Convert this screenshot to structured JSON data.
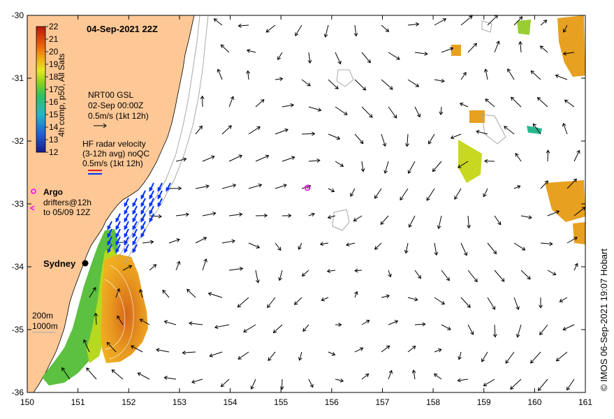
{
  "map": {
    "title": "04-Sep-2021 22Z",
    "credit": "© IMOS 06-Sep-2021 19:07 Hobart",
    "x_ticks": [
      "150",
      "151",
      "152",
      "153",
      "154",
      "155",
      "156",
      "157",
      "158",
      "159",
      "160",
      "161"
    ],
    "y_ticks": [
      "-30",
      "-31",
      "-32",
      "-33",
      "-34",
      "-35",
      "-36"
    ],
    "lon_range": [
      150,
      161
    ],
    "lat_range": [
      -36,
      -30
    ],
    "colorbar": {
      "label": "4h comp, p50, All Sats",
      "ticks": [
        "22",
        "21",
        "20",
        "19",
        "18",
        "17",
        "16",
        "15",
        "14",
        "13",
        "12"
      ],
      "min": 12,
      "max": 22
    },
    "legend": {
      "gsl_title": "NRT00 GSL",
      "gsl_date": "02-Sep 00:00Z",
      "gsl_scale": "0.5m/s (1kt 12h)",
      "radar_title": "HF radar velocity",
      "radar_sub": "(3-12h avg) noQC",
      "radar_scale": "0.5m/s (1kt 12h)",
      "argo_label": "Argo",
      "drifters_label": "drifters@12h",
      "drifters_sub": "to 05/09 12Z",
      "contour_200": "200m",
      "contour_1000": "1000m"
    },
    "city": {
      "name": "Sydney",
      "lon": 151.2,
      "lat": -33.87
    },
    "argo_float": {
      "lon": 155.55,
      "lat": -32.63
    },
    "colors": {
      "land": "#fdc896",
      "ocean": "#ffffff",
      "radar_vectors": "#0033ff",
      "gsl_vectors": "#000000",
      "argo": "#ff00ff",
      "bathymetry": "#a8a8a8"
    }
  }
}
